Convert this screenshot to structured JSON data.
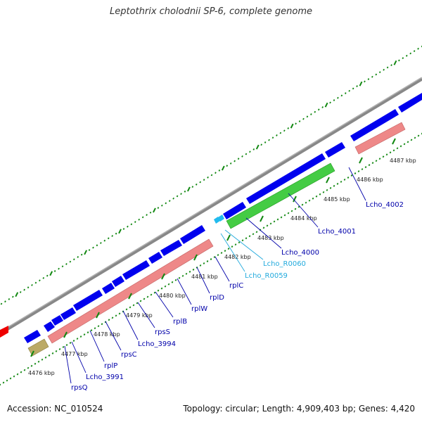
{
  "title": "Leptothrix cholodnii SP-6, complete genome",
  "footer": {
    "accession": "Accession: NC_010524",
    "stats": "Topology: circular; Length: 4,909,403 bp; Genes: 4,420"
  },
  "colors": {
    "backbone": "#888888",
    "cds": "#0000ee",
    "gene": "#ee8888",
    "rrna": "#44cc44",
    "trna": "#22bbee",
    "misc": "#bbaa66",
    "other": "#ee0000",
    "tick": "#118811",
    "label_blue": "#0000aa",
    "label_cyan": "#22aadd"
  },
  "ticks": [
    "4476 kbp",
    "4477 kbp",
    "4478 kbp",
    "4479 kbp",
    "4480 kbp",
    "4481 kbp",
    "4482 kbp",
    "4483 kbp",
    "4484 kbp",
    "4485 kbp",
    "4486 kbp",
    "4487 kbp"
  ],
  "labels": [
    {
      "text": "rpsQ",
      "color": "blue"
    },
    {
      "text": "Lcho_3991",
      "color": "blue"
    },
    {
      "text": "rplP",
      "color": "blue"
    },
    {
      "text": "rpsC",
      "color": "blue"
    },
    {
      "text": "Lcho_3994",
      "color": "blue"
    },
    {
      "text": "rpsS",
      "color": "blue"
    },
    {
      "text": "rplB",
      "color": "blue"
    },
    {
      "text": "rplW",
      "color": "blue"
    },
    {
      "text": "rplD",
      "color": "blue"
    },
    {
      "text": "rplC",
      "color": "blue"
    },
    {
      "text": "Lcho_R0059",
      "color": "cyan"
    },
    {
      "text": "Lcho_R0060",
      "color": "cyan"
    },
    {
      "text": "Lcho_4000",
      "color": "blue"
    },
    {
      "text": "Lcho_4001",
      "color": "blue"
    },
    {
      "text": "Lcho_4002",
      "color": "blue"
    }
  ]
}
